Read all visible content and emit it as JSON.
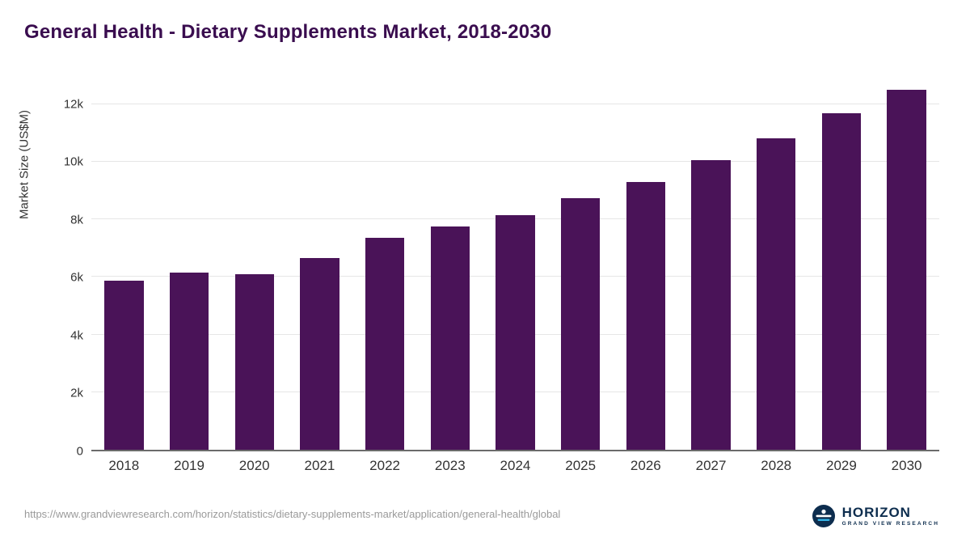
{
  "title": "General Health - Dietary Supplements Market, 2018-2030",
  "chart_data": {
    "type": "bar",
    "title": "General Health - Dietary Supplements Market, 2018-2030",
    "xlabel": "",
    "ylabel": "Market Size (US$M)",
    "categories": [
      "2018",
      "2019",
      "2020",
      "2021",
      "2022",
      "2023",
      "2024",
      "2025",
      "2026",
      "2027",
      "2028",
      "2029",
      "2030"
    ],
    "values": [
      5870,
      6150,
      6090,
      6640,
      7350,
      7760,
      8150,
      8740,
      9280,
      10050,
      10800,
      11680,
      12480
    ],
    "ylim": [
      0,
      12800
    ],
    "yticks": [
      {
        "value": 0,
        "label": "0"
      },
      {
        "value": 2000,
        "label": "2k"
      },
      {
        "value": 4000,
        "label": "4k"
      },
      {
        "value": 6000,
        "label": "6k"
      },
      {
        "value": 8000,
        "label": "8k"
      },
      {
        "value": 10000,
        "label": "10k"
      },
      {
        "value": 12000,
        "label": "12k"
      }
    ],
    "grid": true,
    "legend": "none",
    "bar_color": "#4a1358"
  },
  "colors": {
    "title": "#3a0d4f",
    "bar": "#4a1358",
    "axis_text": "#333333",
    "gridline": "#e6e6e6",
    "logo_navy": "#0d2d4e",
    "logo_cyan": "#35b6e9"
  },
  "footer": {
    "source_url": "https://www.grandviewresearch.com/horizon/statistics/dietary-supplements-market/application/general-health/global",
    "logo": {
      "name": "HORIZON",
      "subtext": "GRAND VIEW RESEARCH"
    }
  }
}
